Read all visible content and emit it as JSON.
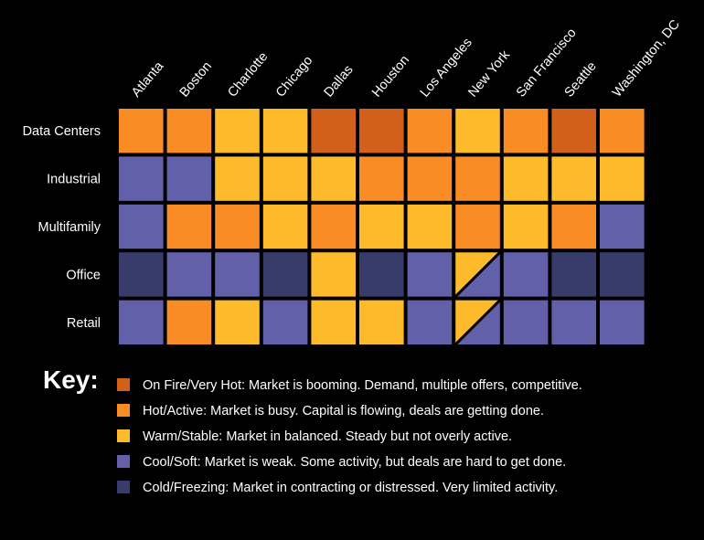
{
  "chart_data": {
    "type": "heatmap",
    "columns": [
      "Atlanta",
      "Boston",
      "Charlotte",
      "Chicago",
      "Dallas",
      "Houston",
      "Los Angeles",
      "New York",
      "San Francisco",
      "Seattle",
      "Washington, DC"
    ],
    "rows": [
      "Data Centers",
      "Industrial",
      "Multifamily",
      "Office",
      "Retail"
    ],
    "values": [
      [
        "hot",
        "hot",
        "warm",
        "warm",
        "on_fire",
        "on_fire",
        "hot",
        "warm",
        "hot",
        "on_fire",
        "hot"
      ],
      [
        "cool",
        "cool",
        "warm",
        "warm",
        "warm",
        "hot",
        "hot",
        "hot",
        "warm",
        "warm",
        "warm"
      ],
      [
        "cool",
        "hot",
        "hot",
        "warm",
        "hot",
        "warm",
        "warm",
        "hot",
        "warm",
        "hot",
        "cool"
      ],
      [
        "cold",
        "cool",
        "cool",
        "cold",
        "warm",
        "cold",
        "cool",
        "warm/cool",
        "cool",
        "cold",
        "cold"
      ],
      [
        "cool",
        "hot",
        "warm",
        "cool",
        "warm",
        "warm",
        "cool",
        "warm/cool",
        "cool",
        "cool",
        "cool"
      ]
    ],
    "colors": {
      "on_fire": "#D2601A",
      "hot": "#F98C25",
      "warm": "#FDBA2A",
      "cool": "#6360AA",
      "cold": "#383C6A"
    },
    "key_title": "Key:",
    "legend": [
      {
        "level": "on_fire",
        "label": "On Fire/Very Hot: Market is booming. Demand, multiple offers, competitive."
      },
      {
        "level": "hot",
        "label": "Hot/Active: Market is busy. Capital is flowing, deals are getting done."
      },
      {
        "level": "warm",
        "label": "Warm/Stable: Market in balanced. Steady but not overly active."
      },
      {
        "level": "cool",
        "label": "Cool/Soft: Market is weak. Some activity, but deals are hard to get done."
      },
      {
        "level": "cold",
        "label": "Cold/Freezing: Market in contracting or distressed. Very limited activity."
      }
    ]
  }
}
